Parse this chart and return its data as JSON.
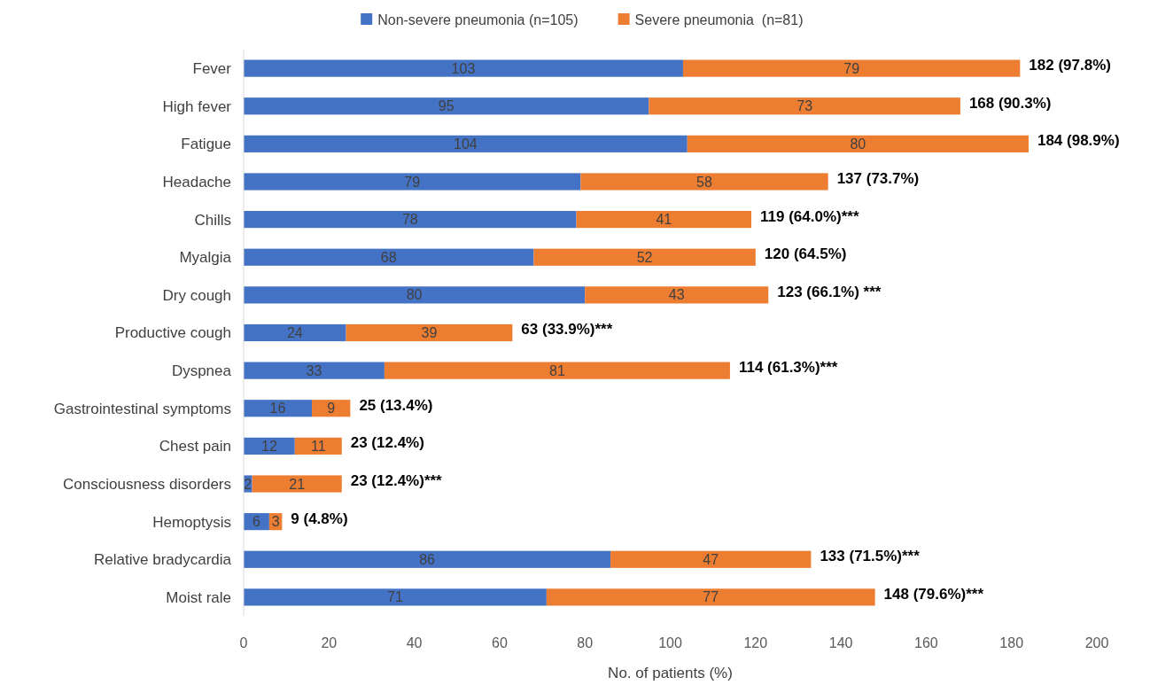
{
  "chart_data": {
    "type": "bar",
    "orientation": "horizontal",
    "stacked": true,
    "xlabel": "No. of patients (%)",
    "categories": [
      "Fever",
      "High fever",
      "Fatigue",
      "Headache",
      "Chills",
      "Myalgia",
      "Dry cough",
      "Productive cough",
      "Dyspnea",
      "Gastrointestinal symptoms",
      "Chest pain",
      "Consciousness disorders",
      "Hemoptysis",
      "Relative bradycardia",
      "Moist rale"
    ],
    "series": [
      {
        "name": "Non-severe pneumonia (n=105)",
        "color": "#4472c4",
        "values": [
          103,
          95,
          104,
          79,
          78,
          68,
          80,
          24,
          33,
          16,
          12,
          2,
          6,
          86,
          71
        ]
      },
      {
        "name": "Severe pneumonia  (n=81)",
        "color": "#ed7d31",
        "values": [
          79,
          73,
          80,
          58,
          41,
          52,
          43,
          39,
          81,
          9,
          11,
          21,
          3,
          47,
          77
        ]
      }
    ],
    "totals": [
      "182 (97.8%)",
      "168 (90.3%)",
      "184 (98.9%)",
      "137 (73.7%)",
      "119 (64.0%)***",
      "120 (64.5%)",
      "123 (66.1%) ***",
      "63 (33.9%)***",
      "114 (61.3%)***",
      "25 (13.4%)",
      "23 (12.4%)",
      "23 (12.4%)***",
      "9 (4.8%)",
      "133 (71.5%)***",
      "148 (79.6%)***"
    ],
    "data_labels": true,
    "xlim": [
      0,
      200
    ],
    "xticks": [
      0,
      20,
      40,
      60,
      80,
      100,
      120,
      140,
      160,
      180,
      200
    ],
    "legend": "top",
    "grid": false
  }
}
